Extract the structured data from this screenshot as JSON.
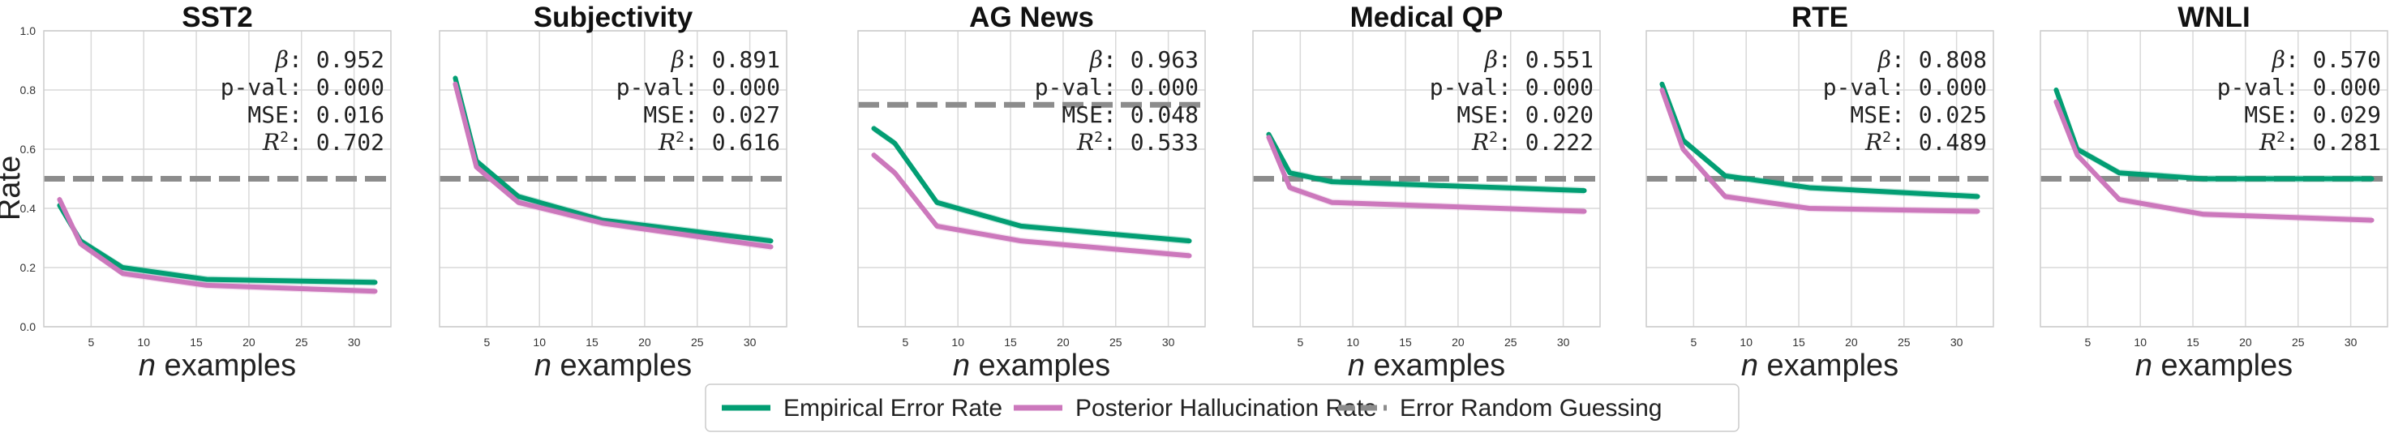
{
  "figure": {
    "ylabel": "Rate",
    "xlabel_var": "n",
    "xlabel_rest": " examples"
  },
  "legend": {
    "placement": "bottom-center",
    "items": [
      {
        "label": "Empirical Error Rate",
        "color": "#029e73",
        "style": "solid"
      },
      {
        "label": "Posterior Hallucination Rate",
        "color": "#cc78bc",
        "style": "solid"
      },
      {
        "label": "Error Random Guessing",
        "color": "#8c8c8c",
        "style": "dashed"
      }
    ]
  },
  "stat_labels": {
    "beta": "β",
    "pval": "p-val",
    "mse": "MSE",
    "r2": "R",
    "r2_sup": "2"
  },
  "colors": {
    "empirical": "#029e73",
    "posterior": "#cc78bc",
    "random": "#8c8c8c",
    "grid": "#d9d9d9",
    "frame": "#cccccc"
  },
  "chart_data": [
    {
      "type": "line",
      "title": "SST2",
      "x": [
        2,
        4,
        8,
        16,
        32
      ],
      "xticks": [
        5,
        10,
        15,
        20,
        25,
        30
      ],
      "yticks": [
        "0.0",
        "0.2",
        "0.4",
        "0.6",
        "0.8",
        "1.0"
      ],
      "ylim": [
        0,
        1
      ],
      "xlim": [
        0.5,
        33.5
      ],
      "grid": true,
      "random_guess": 0.5,
      "series": [
        {
          "name": "Empirical Error Rate",
          "values": [
            0.41,
            0.29,
            0.2,
            0.16,
            0.15
          ]
        },
        {
          "name": "Posterior Hallucination Rate",
          "values": [
            0.43,
            0.28,
            0.18,
            0.14,
            0.12
          ]
        }
      ],
      "stats": {
        "beta": "0.952",
        "pval": "0.000",
        "mse": "0.016",
        "r2": "0.702"
      }
    },
    {
      "type": "line",
      "title": "Subjectivity",
      "x": [
        2,
        4,
        8,
        16,
        32
      ],
      "xticks": [
        5,
        10,
        15,
        20,
        25,
        30
      ],
      "ylim": [
        0,
        1
      ],
      "xlim": [
        0.5,
        33.5
      ],
      "grid": true,
      "random_guess": 0.5,
      "series": [
        {
          "name": "Empirical Error Rate",
          "values": [
            0.84,
            0.56,
            0.44,
            0.36,
            0.29
          ]
        },
        {
          "name": "Posterior Hallucination Rate",
          "values": [
            0.82,
            0.54,
            0.42,
            0.35,
            0.27
          ]
        }
      ],
      "stats": {
        "beta": "0.891",
        "pval": "0.000",
        "mse": "0.027",
        "r2": "0.616"
      }
    },
    {
      "type": "line",
      "title": "AG News",
      "x": [
        2,
        4,
        8,
        16,
        32
      ],
      "xticks": [
        5,
        10,
        15,
        20,
        25,
        30
      ],
      "ylim": [
        0,
        1
      ],
      "xlim": [
        0.5,
        33.5
      ],
      "grid": true,
      "random_guess": 0.75,
      "series": [
        {
          "name": "Empirical Error Rate",
          "values": [
            0.67,
            0.62,
            0.42,
            0.34,
            0.29
          ]
        },
        {
          "name": "Posterior Hallucination Rate",
          "values": [
            0.58,
            0.52,
            0.34,
            0.29,
            0.24
          ]
        }
      ],
      "stats": {
        "beta": "0.963",
        "pval": "0.000",
        "mse": "0.048",
        "r2": "0.533"
      }
    },
    {
      "type": "line",
      "title": "Medical QP",
      "x": [
        2,
        4,
        8,
        16,
        32
      ],
      "xticks": [
        5,
        10,
        15,
        20,
        25,
        30
      ],
      "ylim": [
        0,
        1
      ],
      "xlim": [
        0.5,
        33.5
      ],
      "grid": true,
      "random_guess": 0.5,
      "series": [
        {
          "name": "Empirical Error Rate",
          "values": [
            0.65,
            0.52,
            0.49,
            0.48,
            0.46
          ]
        },
        {
          "name": "Posterior Hallucination Rate",
          "values": [
            0.64,
            0.47,
            0.42,
            0.41,
            0.39
          ]
        }
      ],
      "stats": {
        "beta": "0.551",
        "pval": "0.000",
        "mse": "0.020",
        "r2": "0.222"
      }
    },
    {
      "type": "line",
      "title": "RTE",
      "x": [
        2,
        4,
        8,
        16,
        32
      ],
      "xticks": [
        5,
        10,
        15,
        20,
        25,
        30
      ],
      "ylim": [
        0,
        1
      ],
      "xlim": [
        0.5,
        33.5
      ],
      "grid": true,
      "random_guess": 0.5,
      "series": [
        {
          "name": "Empirical Error Rate",
          "values": [
            0.82,
            0.63,
            0.51,
            0.47,
            0.44
          ]
        },
        {
          "name": "Posterior Hallucination Rate",
          "values": [
            0.8,
            0.6,
            0.44,
            0.4,
            0.39
          ]
        }
      ],
      "stats": {
        "beta": "0.808",
        "pval": "0.000",
        "mse": "0.025",
        "r2": "0.489"
      }
    },
    {
      "type": "line",
      "title": "WNLI",
      "x": [
        2,
        4,
        8,
        16,
        32
      ],
      "xticks": [
        5,
        10,
        15,
        20,
        25,
        30
      ],
      "ylim": [
        0,
        1
      ],
      "xlim": [
        0.5,
        33.5
      ],
      "grid": true,
      "random_guess": 0.5,
      "series": [
        {
          "name": "Empirical Error Rate",
          "values": [
            0.8,
            0.6,
            0.52,
            0.5,
            0.5
          ]
        },
        {
          "name": "Posterior Hallucination Rate",
          "values": [
            0.76,
            0.58,
            0.43,
            0.38,
            0.36
          ]
        }
      ],
      "stats": {
        "beta": "0.570",
        "pval": "0.000",
        "mse": "0.029",
        "r2": "0.281"
      }
    }
  ]
}
